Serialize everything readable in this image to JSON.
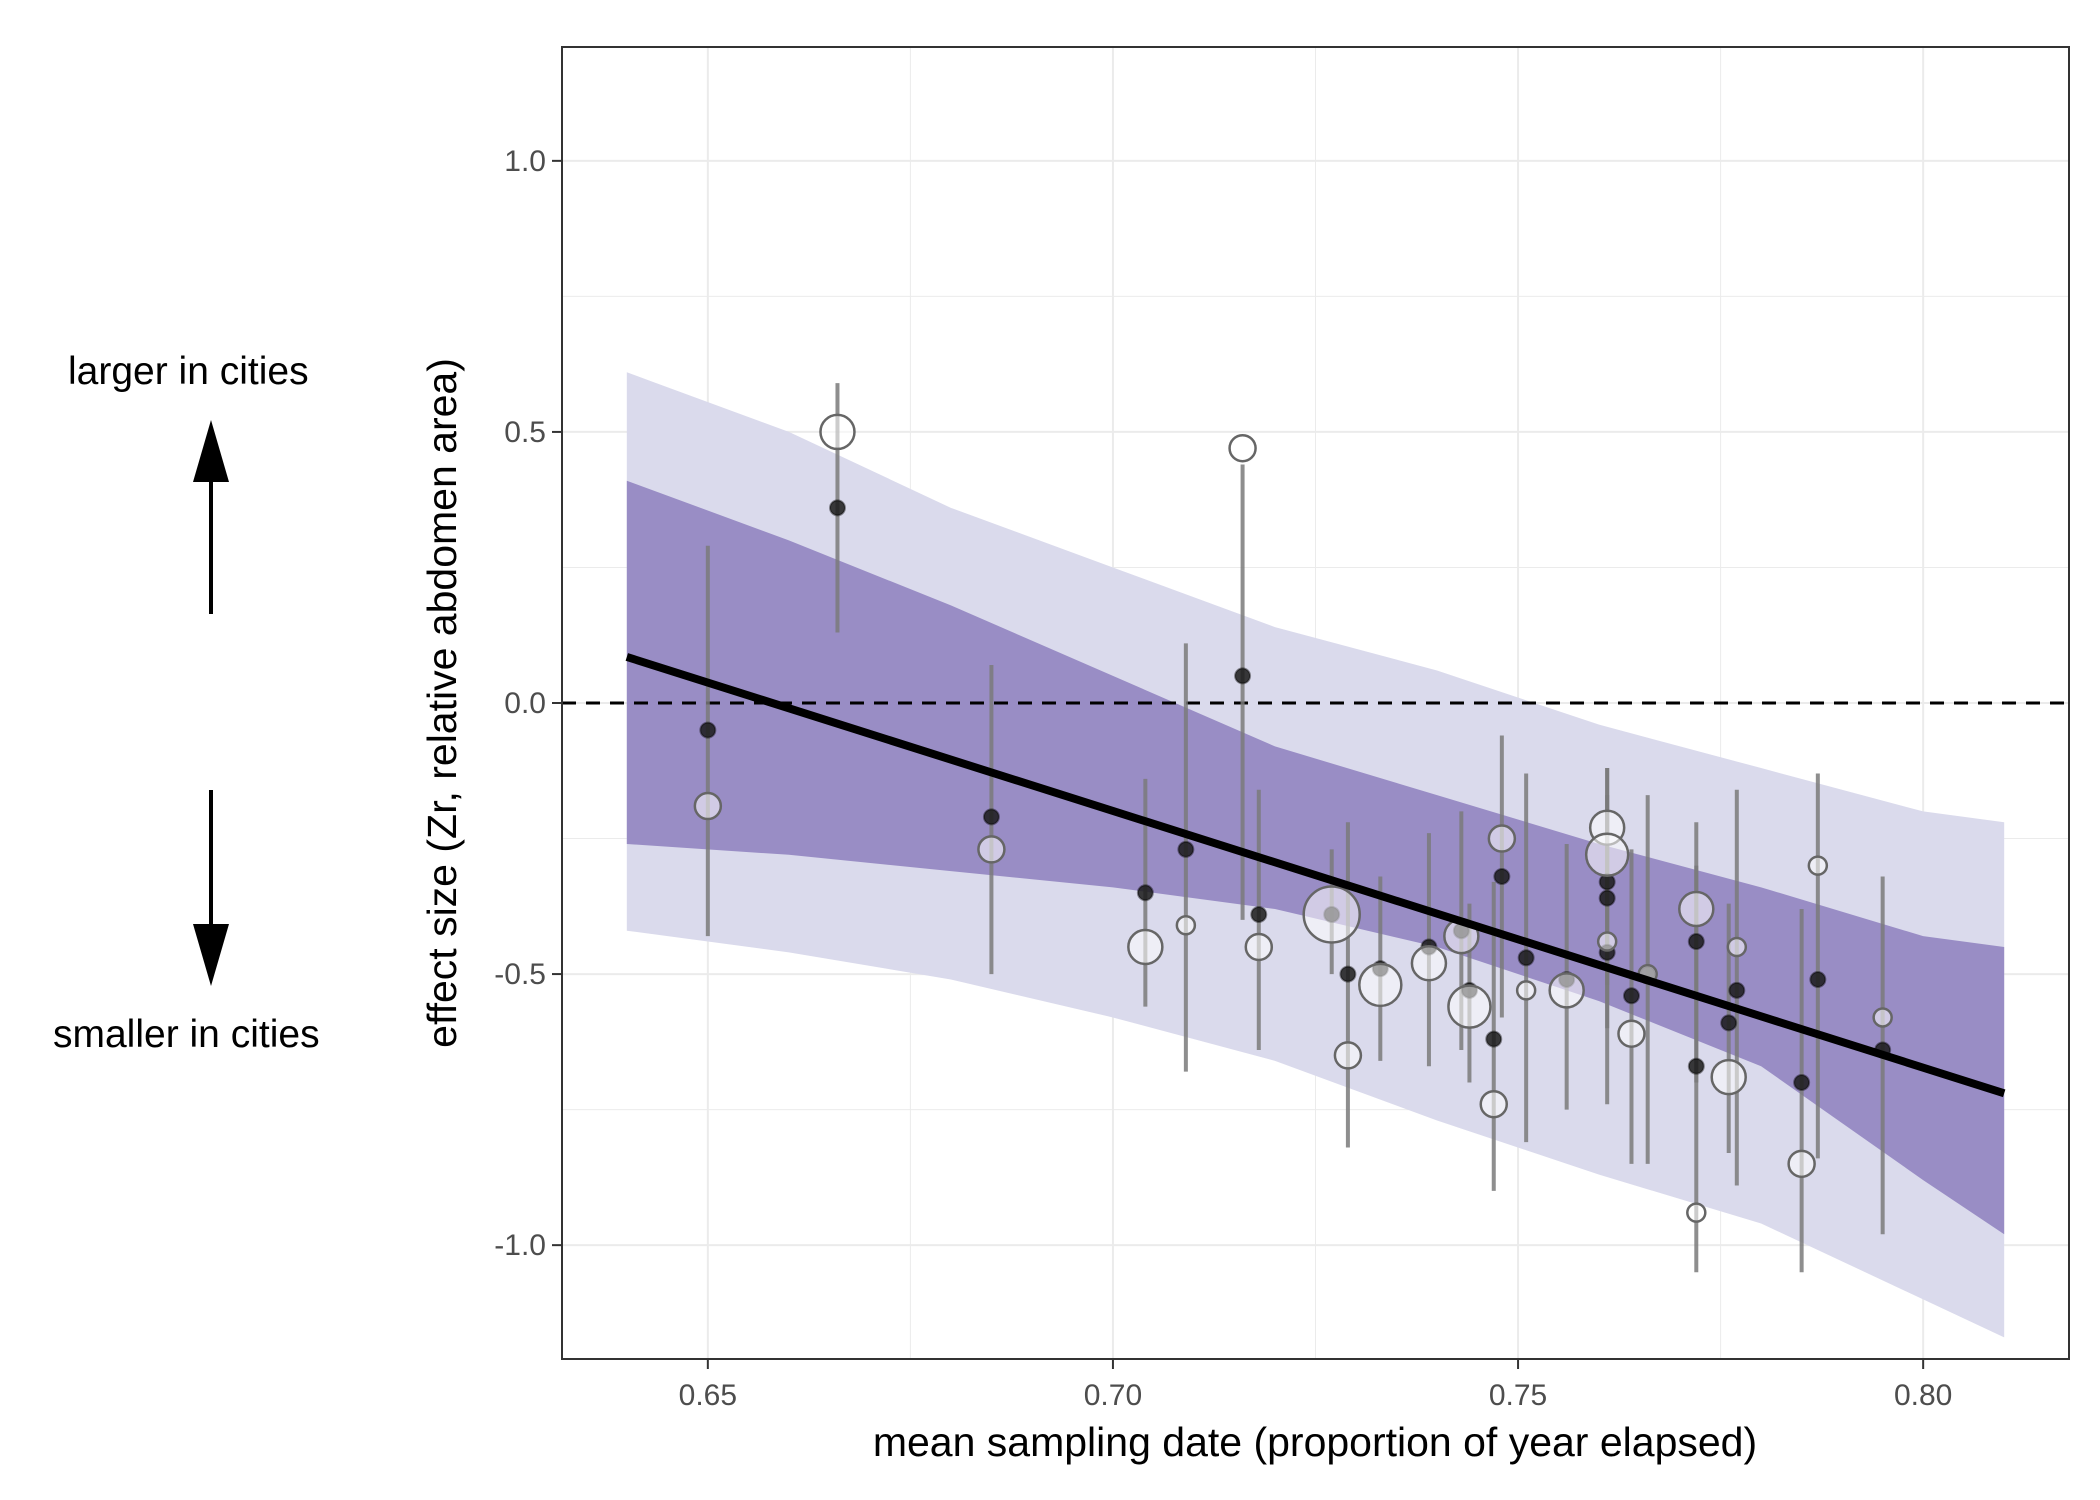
{
  "annotations": {
    "larger_label": "larger in cities",
    "smaller_label": "smaller in cities"
  },
  "chart_data": {
    "type": "scatter",
    "title": "",
    "xlabel": "mean sampling date (proportion of year elapsed)",
    "ylabel": "effect size (Zr, relative abdomen area)",
    "xlim": [
      0.632,
      0.818
    ],
    "ylim": [
      -1.21,
      1.21
    ],
    "x_ticks": [
      0.65,
      0.7,
      0.75,
      0.8
    ],
    "x_tick_labels": [
      "0.65",
      "0.70",
      "0.75",
      "0.80"
    ],
    "y_ticks": [
      1.0,
      0.5,
      0.0,
      -0.5,
      -1.0
    ],
    "y_tick_labels": [
      "1.0",
      "0.5",
      "0.0",
      "-0.5",
      "-1.0"
    ],
    "reference_line": {
      "y": 0.0,
      "style": "dashed",
      "color": "#000000"
    },
    "colors": {
      "outer_band": "#dadaec",
      "inner_band": "#998dc5",
      "fit_line": "#000000",
      "observed_point": "#1a1a1a",
      "error_bar": "#7a7a7a",
      "open_point_stroke": "#666666",
      "grid": "#ebebeb"
    },
    "fit_line": {
      "x": [
        0.64,
        0.81
      ],
      "y": [
        0.085,
        -0.72
      ]
    },
    "inner_band": {
      "x": [
        0.64,
        0.66,
        0.68,
        0.7,
        0.72,
        0.74,
        0.76,
        0.78,
        0.8,
        0.81
      ],
      "upper": [
        0.41,
        0.3,
        0.18,
        0.05,
        -0.08,
        -0.17,
        -0.26,
        -0.34,
        -0.43,
        -0.45
      ],
      "lower": [
        -0.26,
        -0.28,
        -0.31,
        -0.34,
        -0.38,
        -0.45,
        -0.55,
        -0.67,
        -0.88,
        -0.98
      ]
    },
    "outer_band": {
      "x": [
        0.64,
        0.66,
        0.68,
        0.7,
        0.72,
        0.74,
        0.76,
        0.78,
        0.8,
        0.81
      ],
      "upper": [
        0.61,
        0.5,
        0.36,
        0.25,
        0.14,
        0.06,
        -0.04,
        -0.12,
        -0.2,
        -0.22
      ],
      "lower": [
        -0.42,
        -0.46,
        -0.51,
        -0.58,
        -0.66,
        -0.77,
        -0.87,
        -0.96,
        -1.1,
        -1.17
      ]
    },
    "observed": [
      {
        "x": 0.65,
        "y": -0.05,
        "lo": -0.43,
        "hi": 0.29
      },
      {
        "x": 0.666,
        "y": 0.36,
        "lo": 0.13,
        "hi": 0.59
      },
      {
        "x": 0.685,
        "y": -0.21,
        "lo": -0.5,
        "hi": 0.07
      },
      {
        "x": 0.704,
        "y": -0.35,
        "lo": -0.56,
        "hi": -0.14
      },
      {
        "x": 0.709,
        "y": -0.27,
        "lo": -0.68,
        "hi": 0.11
      },
      {
        "x": 0.716,
        "y": 0.05,
        "lo": -0.4,
        "hi": 0.44
      },
      {
        "x": 0.718,
        "y": -0.39,
        "lo": -0.64,
        "hi": -0.16
      },
      {
        "x": 0.727,
        "y": -0.39,
        "lo": -0.5,
        "hi": -0.27
      },
      {
        "x": 0.729,
        "y": -0.5,
        "lo": -0.82,
        "hi": -0.22
      },
      {
        "x": 0.733,
        "y": -0.49,
        "lo": -0.66,
        "hi": -0.32
      },
      {
        "x": 0.739,
        "y": -0.45,
        "lo": -0.67,
        "hi": -0.24
      },
      {
        "x": 0.743,
        "y": -0.42,
        "lo": -0.64,
        "hi": -0.2
      },
      {
        "x": 0.744,
        "y": -0.53,
        "lo": -0.7,
        "hi": -0.37
      },
      {
        "x": 0.747,
        "y": -0.62,
        "lo": -0.9,
        "hi": -0.33
      },
      {
        "x": 0.748,
        "y": -0.32,
        "lo": -0.58,
        "hi": -0.06
      },
      {
        "x": 0.751,
        "y": -0.47,
        "lo": -0.81,
        "hi": -0.13
      },
      {
        "x": 0.756,
        "y": -0.51,
        "lo": -0.75,
        "hi": -0.26
      },
      {
        "x": 0.761,
        "y": -0.33,
        "lo": -0.52,
        "hi": -0.12
      },
      {
        "x": 0.761,
        "y": -0.36,
        "lo": -0.6,
        "hi": -0.12
      },
      {
        "x": 0.761,
        "y": -0.46,
        "lo": -0.74,
        "hi": -0.17
      },
      {
        "x": 0.764,
        "y": -0.54,
        "lo": -0.85,
        "hi": -0.27
      },
      {
        "x": 0.766,
        "y": -0.5,
        "lo": -0.85,
        "hi": -0.17
      },
      {
        "x": 0.772,
        "y": -0.44,
        "lo": -0.7,
        "hi": -0.22
      },
      {
        "x": 0.772,
        "y": -0.67,
        "lo": -1.05,
        "hi": -0.3
      },
      {
        "x": 0.776,
        "y": -0.59,
        "lo": -0.83,
        "hi": -0.37
      },
      {
        "x": 0.777,
        "y": -0.53,
        "lo": -0.89,
        "hi": -0.16
      },
      {
        "x": 0.785,
        "y": -0.7,
        "lo": -1.05,
        "hi": -0.38
      },
      {
        "x": 0.787,
        "y": -0.51,
        "lo": -0.84,
        "hi": -0.13
      },
      {
        "x": 0.795,
        "y": -0.64,
        "lo": -0.98,
        "hi": -0.32
      }
    ],
    "predicted": [
      {
        "x": 0.65,
        "y": -0.19,
        "size": 2
      },
      {
        "x": 0.666,
        "y": 0.5,
        "size": 3
      },
      {
        "x": 0.685,
        "y": -0.27,
        "size": 2
      },
      {
        "x": 0.704,
        "y": -0.45,
        "size": 3
      },
      {
        "x": 0.709,
        "y": -0.41,
        "size": 1
      },
      {
        "x": 0.716,
        "y": 0.47,
        "size": 2
      },
      {
        "x": 0.718,
        "y": -0.45,
        "size": 2
      },
      {
        "x": 0.727,
        "y": -0.39,
        "size": 5
      },
      {
        "x": 0.729,
        "y": -0.65,
        "size": 2
      },
      {
        "x": 0.733,
        "y": -0.52,
        "size": 4
      },
      {
        "x": 0.739,
        "y": -0.48,
        "size": 3
      },
      {
        "x": 0.743,
        "y": -0.43,
        "size": 3
      },
      {
        "x": 0.744,
        "y": -0.56,
        "size": 4
      },
      {
        "x": 0.747,
        "y": -0.74,
        "size": 2
      },
      {
        "x": 0.748,
        "y": -0.25,
        "size": 2
      },
      {
        "x": 0.751,
        "y": -0.53,
        "size": 1
      },
      {
        "x": 0.756,
        "y": -0.53,
        "size": 3
      },
      {
        "x": 0.761,
        "y": -0.23,
        "size": 3
      },
      {
        "x": 0.761,
        "y": -0.28,
        "size": 4
      },
      {
        "x": 0.761,
        "y": -0.44,
        "size": 1
      },
      {
        "x": 0.764,
        "y": -0.61,
        "size": 2
      },
      {
        "x": 0.766,
        "y": -0.5,
        "size": 1
      },
      {
        "x": 0.772,
        "y": -0.38,
        "size": 3
      },
      {
        "x": 0.772,
        "y": -0.94,
        "size": 1
      },
      {
        "x": 0.776,
        "y": -0.69,
        "size": 3
      },
      {
        "x": 0.777,
        "y": -0.45,
        "size": 1
      },
      {
        "x": 0.785,
        "y": -0.85,
        "size": 2
      },
      {
        "x": 0.787,
        "y": -0.3,
        "size": 1
      },
      {
        "x": 0.795,
        "y": -0.58,
        "size": 1
      }
    ]
  }
}
